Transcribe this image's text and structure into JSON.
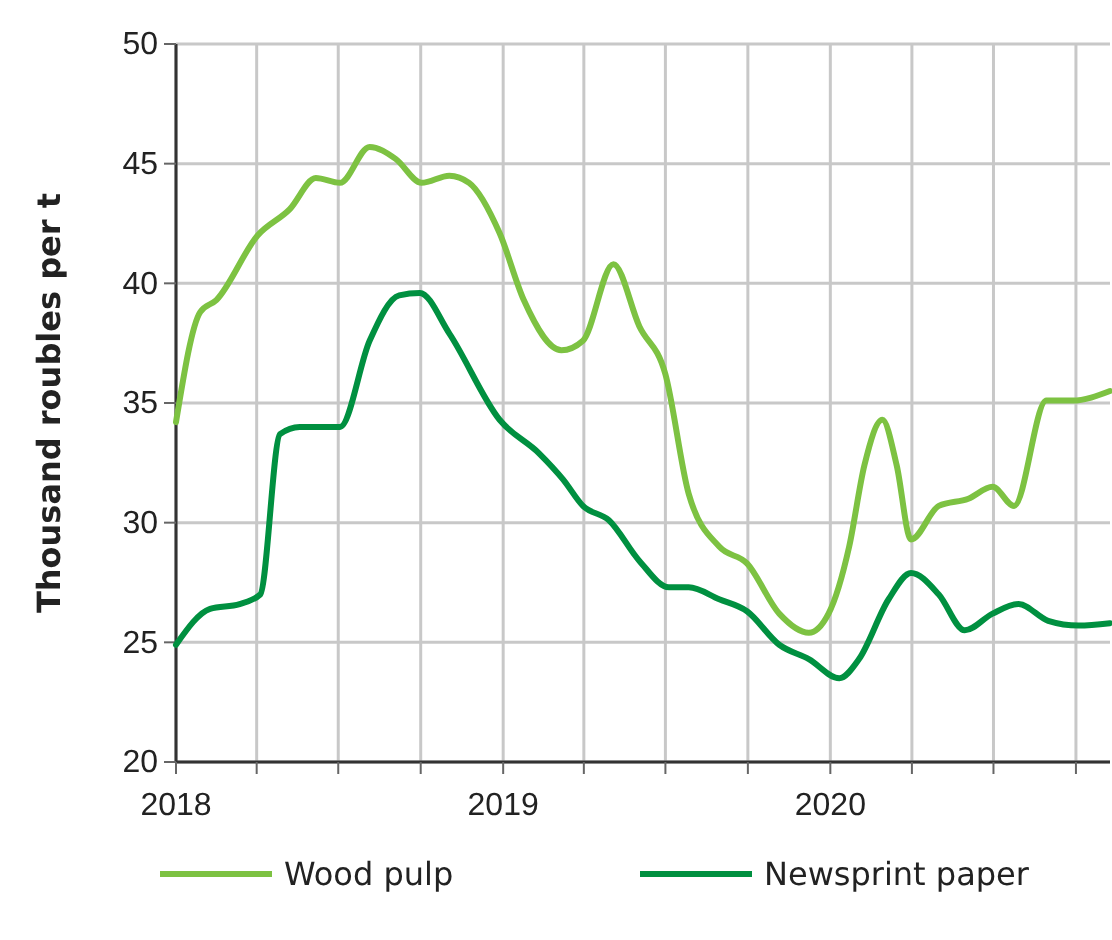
{
  "chart_data": {
    "type": "line",
    "ylabel": "Thousand roubles per t",
    "xlim": [
      "2018-01-01",
      "2020-11-08"
    ],
    "xticks": [
      {
        "value": "2018-01-01",
        "label": "2018"
      },
      {
        "value": "2018-04-01",
        "label": null
      },
      {
        "value": "2018-07-01",
        "label": null
      },
      {
        "value": "2018-10-01",
        "label": null
      },
      {
        "value": "2019-01-01",
        "label": "2019"
      },
      {
        "value": "2019-04-01",
        "label": null
      },
      {
        "value": "2019-07-01",
        "label": null
      },
      {
        "value": "2019-10-01",
        "label": null
      },
      {
        "value": "2020-01-01",
        "label": "2020"
      },
      {
        "value": "2020-04-01",
        "label": null
      },
      {
        "value": "2020-07-01",
        "label": null
      },
      {
        "value": "2020-10-01",
        "label": null
      }
    ],
    "ylim": [
      20,
      50
    ],
    "yticks": [
      20,
      25,
      30,
      35,
      40,
      45,
      50
    ],
    "grid": true,
    "legend": "bottom",
    "line_style": "solid",
    "marker": "none",
    "series": [
      {
        "name": "Wood pulp",
        "color": "#7dc242",
        "x": [
          "2018-01-01",
          "2018-01-28",
          "2018-02-15",
          "2018-04-02",
          "2018-05-08",
          "2018-06-06",
          "2018-07-03",
          "2018-08-05",
          "2018-09-03",
          "2018-10-02",
          "2018-11-02",
          "2018-11-24",
          "2018-12-28",
          "2019-01-24",
          "2019-03-07",
          "2019-03-31",
          "2019-05-04",
          "2019-06-02",
          "2019-07-01",
          "2019-07-27",
          "2019-08-30",
          "2019-09-30",
          "2019-11-05",
          "2019-12-08",
          "2019-12-30",
          "2020-01-22",
          "2020-02-08",
          "2020-02-28",
          "2020-03-15",
          "2020-03-31",
          "2020-05-01",
          "2020-06-03",
          "2020-06-30",
          "2020-07-24",
          "2020-08-29",
          "2020-09-27",
          "2020-11-08"
        ],
        "values": [
          34.2,
          38.8,
          39.3,
          42.0,
          43.1,
          44.4,
          44.2,
          45.7,
          45.2,
          44.2,
          44.5,
          44.2,
          42.1,
          39.3,
          37.2,
          37.6,
          40.8,
          38.2,
          36.2,
          31.2,
          29.0,
          28.3,
          26.2,
          25.4,
          26.2,
          29.0,
          32.4,
          34.3,
          32.4,
          29.3,
          30.7,
          31.0,
          31.5,
          30.7,
          35.1,
          35.1,
          35.5
        ]
      },
      {
        "name": "Newsprint paper",
        "color": "#009040",
        "x": [
          "2018-01-01",
          "2018-02-08",
          "2018-03-13",
          "2018-04-05",
          "2018-04-27",
          "2018-05-19",
          "2018-07-03",
          "2018-08-05",
          "2018-09-07",
          "2018-09-30",
          "2018-11-02",
          "2018-12-28",
          "2019-02-10",
          "2019-03-09",
          "2019-03-31",
          "2019-04-29",
          "2019-06-02",
          "2019-07-05",
          "2019-07-27",
          "2019-08-30",
          "2019-09-30",
          "2019-11-05",
          "2019-12-08",
          "2020-01-11",
          "2020-02-02",
          "2020-03-06",
          "2020-03-31",
          "2020-05-01",
          "2020-05-30",
          "2020-06-30",
          "2020-07-29",
          "2020-08-31",
          "2020-10-04",
          "2020-11-08"
        ],
        "values": [
          24.9,
          26.4,
          26.6,
          27.0,
          33.7,
          34.0,
          34.0,
          37.6,
          39.5,
          39.6,
          37.9,
          34.3,
          32.9,
          31.8,
          30.7,
          30.1,
          28.4,
          27.3,
          27.3,
          26.8,
          26.3,
          24.9,
          24.3,
          23.5,
          24.3,
          26.8,
          27.9,
          27.0,
          25.5,
          26.2,
          26.6,
          25.9,
          25.7,
          25.8
        ]
      }
    ]
  }
}
